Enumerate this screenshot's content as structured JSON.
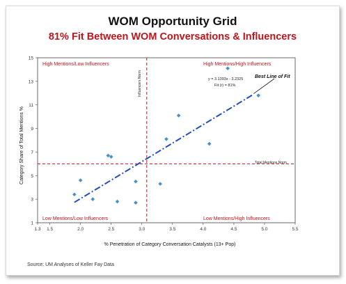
{
  "title": "WOM Opportunity Grid",
  "subtitle": "81% Fit Between WOM Conversations & Influencers",
  "source": "Source: UM Analyses of Keller Fay Data",
  "quadrants": {
    "top_left": "High Mentions/Low Influencers",
    "top_right": "High Mentions/High Influencers",
    "bottom_left": "Low Mentions/Low Influencers",
    "bottom_right": "Low Mentions/High Influencers"
  },
  "annotations": {
    "influencers_norm": "Influencers Norm",
    "total_mentions_norm": "Total Mentions Norm",
    "equation": "y = 3.1393x - 3.2325",
    "fit": "Fit (r) = 81%",
    "best_line": "Best Line of Fit"
  },
  "colors": {
    "accent_red": "#c0141c",
    "point_blue": "#4a90c8",
    "trend_blue": "#1f4fbf"
  },
  "chart_data": {
    "type": "scatter",
    "xlabel": "% Penetration of Category Conversation Catalysts  (13+ Pop)",
    "ylabel": "Category Share of Total Mentions  %",
    "xlim": [
      1.3,
      5.5
    ],
    "ylim": [
      1,
      15
    ],
    "xticks": [
      "1.3",
      "1.5",
      "2.0",
      "2.5",
      "3.0",
      "3.5",
      "4.0",
      "4.5",
      "5.0",
      "5.5"
    ],
    "yticks": [
      "1",
      "3",
      "5",
      "7",
      "9",
      "11",
      "13",
      "15"
    ],
    "grid": false,
    "points": [
      {
        "x": 1.9,
        "y": 3.4
      },
      {
        "x": 2.0,
        "y": 4.6
      },
      {
        "x": 2.2,
        "y": 3.0
      },
      {
        "x": 2.45,
        "y": 6.7
      },
      {
        "x": 2.5,
        "y": 6.6
      },
      {
        "x": 2.6,
        "y": 2.8
      },
      {
        "x": 2.9,
        "y": 4.5
      },
      {
        "x": 2.9,
        "y": 2.7
      },
      {
        "x": 3.3,
        "y": 4.3
      },
      {
        "x": 3.4,
        "y": 8.1
      },
      {
        "x": 3.6,
        "y": 10.1
      },
      {
        "x": 4.1,
        "y": 7.7
      },
      {
        "x": 4.4,
        "y": 14.1
      },
      {
        "x": 4.9,
        "y": 11.8
      }
    ],
    "trendline": {
      "x": [
        1.9,
        4.8
      ],
      "slope": 3.1393,
      "intercept": -3.2325
    },
    "reference_lines": {
      "x": 3.08,
      "y": 6.0
    }
  }
}
